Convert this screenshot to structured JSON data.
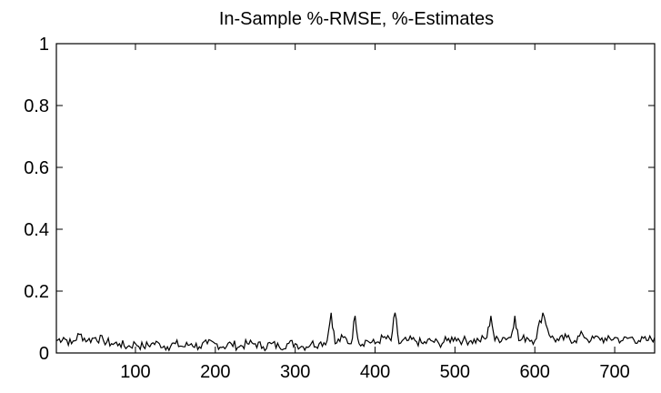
{
  "chart_data": {
    "type": "line",
    "title": "In-Sample %-RMSE, %-Estimates",
    "xlabel": "",
    "ylabel": "",
    "xlim": [
      1,
      750
    ],
    "ylim": [
      0,
      1
    ],
    "xticks": [
      100,
      200,
      300,
      400,
      500,
      600,
      700
    ],
    "yticks": [
      0,
      0.2,
      0.4,
      0.6,
      0.8,
      1
    ],
    "ytick_labels": [
      "0",
      "0.2",
      "0.4",
      "0.6",
      "0.8",
      "1"
    ],
    "grid": false,
    "line_color": "#000000",
    "series": [
      {
        "x": [
          1,
          10,
          20,
          30,
          40,
          50,
          60,
          70,
          80,
          90,
          100,
          110,
          120,
          130,
          140,
          150,
          160,
          170,
          180,
          190,
          200,
          210,
          220,
          230,
          240,
          250,
          260,
          270,
          280,
          290,
          300,
          310,
          320,
          330,
          340,
          345,
          350,
          360,
          370,
          375,
          380,
          390,
          400,
          410,
          420,
          425,
          430,
          440,
          450,
          460,
          470,
          480,
          490,
          500,
          510,
          520,
          530,
          540,
          545,
          550,
          560,
          570,
          575,
          580,
          590,
          600,
          610,
          620,
          630,
          640,
          650,
          660,
          670,
          680,
          690,
          700,
          710,
          720,
          730,
          740,
          750
        ],
        "y": [
          0.04,
          0.05,
          0.03,
          0.06,
          0.04,
          0.05,
          0.04,
          0.03,
          0.03,
          0.02,
          0.03,
          0.02,
          0.03,
          0.03,
          0.02,
          0.03,
          0.02,
          0.03,
          0.02,
          0.03,
          0.03,
          0.02,
          0.03,
          0.02,
          0.03,
          0.03,
          0.02,
          0.03,
          0.02,
          0.03,
          0.03,
          0.02,
          0.03,
          0.03,
          0.04,
          0.13,
          0.03,
          0.05,
          0.03,
          0.12,
          0.03,
          0.04,
          0.03,
          0.05,
          0.04,
          0.13,
          0.03,
          0.04,
          0.04,
          0.03,
          0.04,
          0.03,
          0.04,
          0.05,
          0.04,
          0.04,
          0.04,
          0.05,
          0.12,
          0.04,
          0.05,
          0.05,
          0.12,
          0.04,
          0.05,
          0.04,
          0.13,
          0.05,
          0.04,
          0.05,
          0.04,
          0.06,
          0.04,
          0.05,
          0.04,
          0.05,
          0.04,
          0.05,
          0.04,
          0.04,
          0.05
        ]
      }
    ]
  }
}
